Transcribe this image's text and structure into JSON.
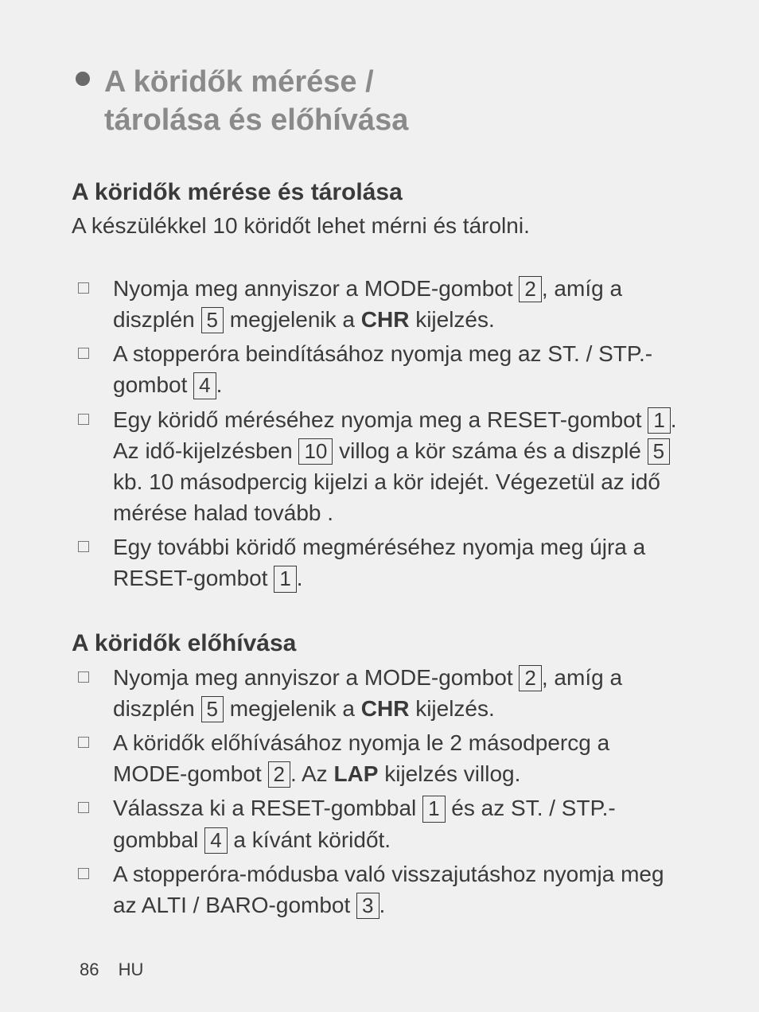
{
  "title_line1": "A köridők mérése /",
  "title_line2": "tárolása és előhívása",
  "section1": {
    "heading": "A köridők mérése és tárolása",
    "intro": "A készülékkel 10 köridőt lehet mérni és tárolni.",
    "items": [
      {
        "t1": "Nyomja meg annyiszor a MODE-gombot ",
        "b1": "2",
        "t2": ", amíg a diszplén ",
        "b2": "5",
        "t3": " megjelenik a ",
        "bold1": "CHR",
        "t4": " kijelzés."
      },
      {
        "t1": "A stopperóra beindításához nyomja meg az ST. / STP.-gombot ",
        "b1": "4",
        "t2": "."
      },
      {
        "t1": "Egy köridő méréséhez nyomja meg a RESET-gombot ",
        "b1": "1",
        "t2": ". Az idő-kijelzésben ",
        "b2": "10",
        "t3": " villog a kör száma és a diszplé ",
        "b3": "5",
        "t4": " kb. 10 másodpercig kijelzi a kör idejét. Végezetül az idő mérése halad tovább ."
      },
      {
        "t1": "Egy további köridő megméréséhez nyomja meg újra a RESET-gombot ",
        "b1": "1",
        "t2": "."
      }
    ]
  },
  "section2": {
    "heading": "A köridők előhívása",
    "items": [
      {
        "t1": "Nyomja meg annyiszor a MODE-gombot ",
        "b1": "2",
        "t2": ", amíg a diszplén ",
        "b2": "5",
        "t3": " megjelenik a ",
        "bold1": "CHR",
        "t4": " kijelzés."
      },
      {
        "t1": "A köridők előhívásához nyomja le 2 másodpercg a MODE-gombot ",
        "b1": "2",
        "t2": ". Az ",
        "bold1": "LAP",
        "t3": " kijelzés villog."
      },
      {
        "t1": "Válassza ki a RESET-gombbal ",
        "b1": "1",
        "t2": " és az ST. / STP.-gombbal ",
        "b2": "4",
        "t3": " a kívánt köridőt."
      },
      {
        "t1": "A stopperóra-módusba való visszajutáshoz nyomja meg az ALTI / BARO-gombot ",
        "b1": "3",
        "t2": "."
      }
    ]
  },
  "footer": {
    "page": "86",
    "lang": "HU"
  }
}
